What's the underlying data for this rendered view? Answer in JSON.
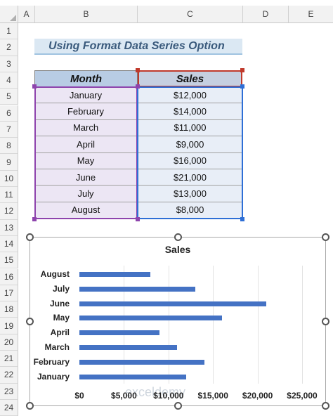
{
  "sheet": {
    "columns": [
      "A",
      "B",
      "C",
      "D",
      "E"
    ],
    "rows": [
      "1",
      "2",
      "3",
      "4",
      "5",
      "6",
      "7",
      "8",
      "9",
      "10",
      "11",
      "12",
      "13",
      "14",
      "15",
      "16",
      "17",
      "18",
      "19",
      "20",
      "21",
      "22",
      "23",
      "24"
    ]
  },
  "heading": "Using Format Data Series Option",
  "table": {
    "headers": {
      "month": "Month",
      "sales": "Sales"
    },
    "rows": [
      {
        "month": "January",
        "sales": "$12,000"
      },
      {
        "month": "February",
        "sales": "$14,000"
      },
      {
        "month": "March",
        "sales": "$11,000"
      },
      {
        "month": "April",
        "sales": "$9,000"
      },
      {
        "month": "May",
        "sales": "$16,000"
      },
      {
        "month": "June",
        "sales": "$21,000"
      },
      {
        "month": "July",
        "sales": "$13,000"
      },
      {
        "month": "August",
        "sales": "$8,000"
      }
    ]
  },
  "watermark": "exceldemy",
  "chart_data": {
    "type": "bar",
    "orientation": "horizontal",
    "title": "Sales",
    "categories": [
      "August",
      "July",
      "June",
      "May",
      "April",
      "March",
      "February",
      "January"
    ],
    "values": [
      8000,
      13000,
      21000,
      16000,
      9000,
      11000,
      14000,
      12000
    ],
    "xlim": [
      0,
      25000
    ],
    "ticks": [
      0,
      5000,
      10000,
      15000,
      20000,
      25000
    ],
    "tick_labels": [
      "$0",
      "$5,000",
      "$10,000",
      "$15,000",
      "$20,000",
      "$25,000"
    ],
    "bar_color": "#4472c4",
    "grid": true
  },
  "colors": {
    "title_bg": "#dbe8f3",
    "header_month_bg": "#b8cce4",
    "selection_purple": "#8e44ad",
    "selection_blue": "#2e6fd6",
    "selection_red": "#c0392b"
  }
}
